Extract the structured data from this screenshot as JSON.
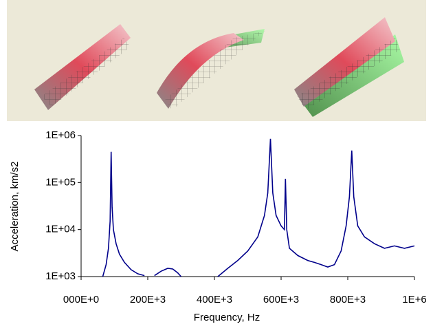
{
  "chart_data": {
    "type": "line",
    "x_label": "Frequency, Hz",
    "y_label": "Acceleration, km/s2",
    "log_y": true,
    "grid": false,
    "xlim": [
      0,
      1000000
    ],
    "ylim": [
      1000,
      1000000
    ],
    "xticks": [
      {
        "value": 0,
        "label": "000E+0"
      },
      {
        "value": 200000,
        "label": "200E+3"
      },
      {
        "value": 400000,
        "label": "400E+3"
      },
      {
        "value": 600000,
        "label": "600E+3"
      },
      {
        "value": 800000,
        "label": "800E+3"
      },
      {
        "value": 1000000,
        "label": "1E+6"
      }
    ],
    "yticks": [
      {
        "value": 1000,
        "label": "1E+03"
      },
      {
        "value": 10000,
        "label": "1E+04"
      },
      {
        "value": 100000,
        "label": "1E+05"
      },
      {
        "value": 1000000,
        "label": "1E+06"
      }
    ],
    "x": [
      65000,
      75000,
      82000,
      87000,
      90000,
      93000,
      97000,
      105000,
      115000,
      130000,
      150000,
      170000,
      190000,
      200000,
      220000,
      240000,
      260000,
      275000,
      290000,
      300000,
      350000,
      410000,
      440000,
      470000,
      500000,
      530000,
      550000,
      560000,
      568000,
      575000,
      585000,
      600000,
      610000,
      613000,
      617000,
      625000,
      650000,
      680000,
      700000,
      720000,
      740000,
      760000,
      780000,
      795000,
      805000,
      812000,
      818000,
      830000,
      850000,
      880000,
      910000,
      940000,
      970000,
      1000000
    ],
    "series": [
      {
        "color": "#00008b",
        "values": [
          1000,
          1800,
          4000,
          15000,
          450000,
          30000,
          10000,
          5000,
          3000,
          2000,
          1400,
          1150,
          1050,
          null,
          1050,
          1300,
          1500,
          1450,
          1200,
          1000,
          null,
          1000,
          1500,
          2200,
          3500,
          7000,
          20000,
          60000,
          850000,
          60000,
          20000,
          12000,
          10000,
          120000,
          10000,
          4000,
          2800,
          2200,
          2000,
          1800,
          1600,
          1800,
          3500,
          12000,
          50000,
          480000,
          50000,
          12000,
          7000,
          5000,
          4000,
          4500,
          4000,
          4500
        ]
      }
    ]
  }
}
